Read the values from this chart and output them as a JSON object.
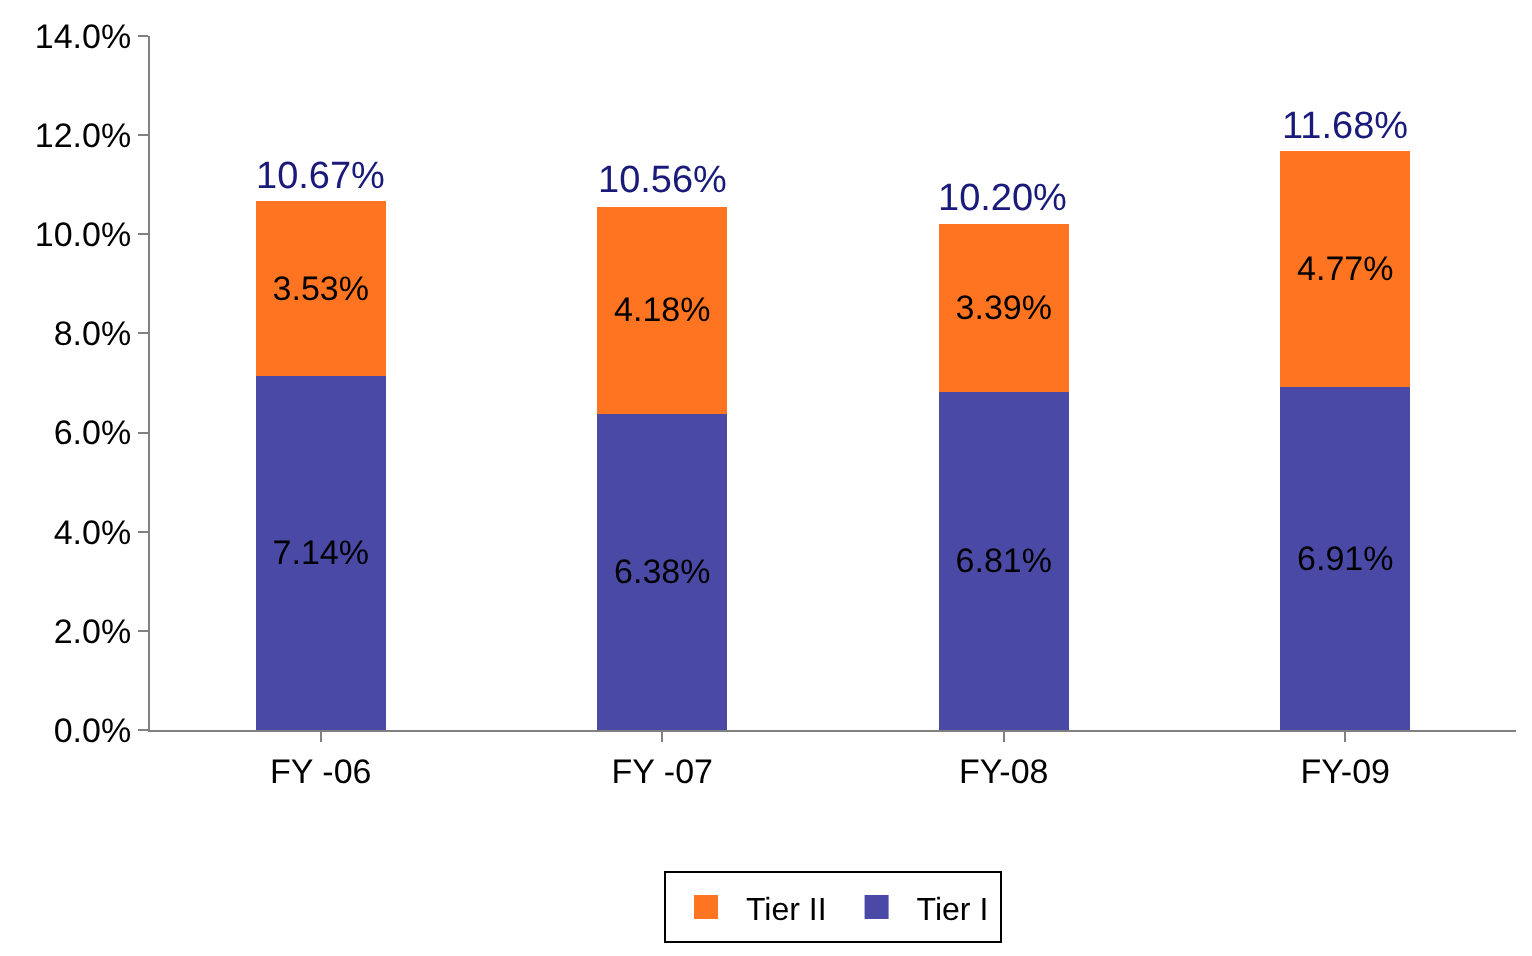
{
  "chart_data": {
    "type": "bar",
    "stacked": true,
    "categories": [
      "FY -06",
      "FY -07",
      "FY-08",
      "FY-09"
    ],
    "series": [
      {
        "name": "Tier I",
        "color": "#4a4aa6",
        "values": [
          7.14,
          6.38,
          6.81,
          6.91
        ],
        "value_labels": [
          "7.14%",
          "6.38%",
          "6.81%",
          "6.91%"
        ]
      },
      {
        "name": "Tier II",
        "color": "#ff7420",
        "values": [
          3.53,
          4.18,
          3.39,
          4.77
        ],
        "value_labels": [
          "3.53%",
          "4.18%",
          "3.39%",
          "4.77%"
        ]
      }
    ],
    "totals": [
      "10.67%",
      "10.56%",
      "10.20%",
      "11.68%"
    ],
    "ylim": [
      0,
      14
    ],
    "yticks": [
      {
        "value": 0,
        "label": "0.0%"
      },
      {
        "value": 2,
        "label": "2.0%"
      },
      {
        "value": 4,
        "label": "4.0%"
      },
      {
        "value": 6,
        "label": "6.0%"
      },
      {
        "value": 8,
        "label": "8.0%"
      },
      {
        "value": 10,
        "label": "10.0%"
      },
      {
        "value": 12,
        "label": "12.0%"
      },
      {
        "value": 14,
        "label": "14.0%"
      }
    ],
    "grid": false,
    "legend": "bottom"
  }
}
